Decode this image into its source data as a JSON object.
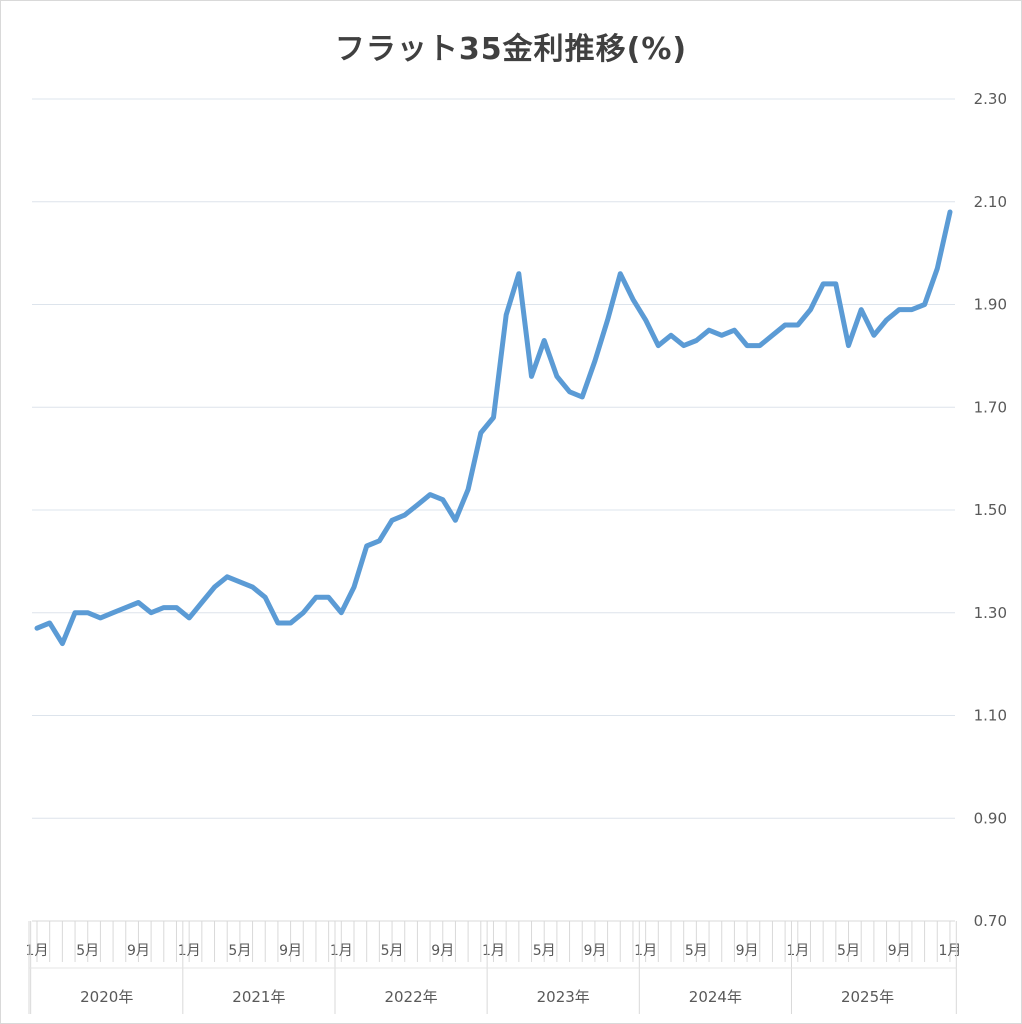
{
  "chart_data": {
    "type": "line",
    "title": "フラット35金利推移(%)",
    "ylim": [
      0.7,
      2.3
    ],
    "y_ticks": [
      "0.70",
      "0.90",
      "1.10",
      "1.30",
      "1.50",
      "1.70",
      "1.90",
      "2.10",
      "2.30"
    ],
    "y_axis_side": "right",
    "grid": true,
    "x_month_ticks": [
      {
        "index": 0,
        "label": "1月"
      },
      {
        "index": 4,
        "label": "5月"
      },
      {
        "index": 8,
        "label": "9月"
      },
      {
        "index": 12,
        "label": "1月"
      },
      {
        "index": 16,
        "label": "5月"
      },
      {
        "index": 20,
        "label": "9月"
      },
      {
        "index": 24,
        "label": "1月"
      },
      {
        "index": 28,
        "label": "5月"
      },
      {
        "index": 32,
        "label": "9月"
      },
      {
        "index": 36,
        "label": "1月"
      },
      {
        "index": 40,
        "label": "5月"
      },
      {
        "index": 44,
        "label": "9月"
      },
      {
        "index": 48,
        "label": "1月"
      },
      {
        "index": 52,
        "label": "5月"
      },
      {
        "index": 56,
        "label": "9月"
      },
      {
        "index": 60,
        "label": "1月"
      },
      {
        "index": 64,
        "label": "5月"
      },
      {
        "index": 68,
        "label": "9月"
      },
      {
        "index": 72,
        "label": "1月"
      }
    ],
    "x_year_groups": [
      {
        "label": "2020年",
        "start": 0,
        "end": 11
      },
      {
        "label": "2021年",
        "start": 12,
        "end": 23
      },
      {
        "label": "2022年",
        "start": 24,
        "end": 35
      },
      {
        "label": "2023年",
        "start": 36,
        "end": 47
      },
      {
        "label": "2024年",
        "start": 48,
        "end": 59
      },
      {
        "label": "2025年",
        "start": 60,
        "end": 71
      }
    ],
    "series": [
      {
        "color": "#5b9bd5",
        "values": [
          1.27,
          1.28,
          1.24,
          1.3,
          1.3,
          1.29,
          1.3,
          1.31,
          1.32,
          1.3,
          1.31,
          1.31,
          1.29,
          1.32,
          1.35,
          1.37,
          1.36,
          1.35,
          1.33,
          1.28,
          1.28,
          1.3,
          1.33,
          1.33,
          1.3,
          1.35,
          1.43,
          1.44,
          1.48,
          1.49,
          1.51,
          1.53,
          1.52,
          1.48,
          1.54,
          1.65,
          1.68,
          1.88,
          1.96,
          1.76,
          1.83,
          1.76,
          1.73,
          1.72,
          1.79,
          1.87,
          1.96,
          1.91,
          1.87,
          1.82,
          1.84,
          1.82,
          1.83,
          1.85,
          1.84,
          1.85,
          1.82,
          1.82,
          1.84,
          1.86,
          1.86,
          1.89,
          1.94,
          1.94,
          1.82,
          1.89,
          1.84,
          1.87,
          1.89,
          1.89,
          1.9,
          1.97,
          2.08
        ]
      }
    ]
  }
}
